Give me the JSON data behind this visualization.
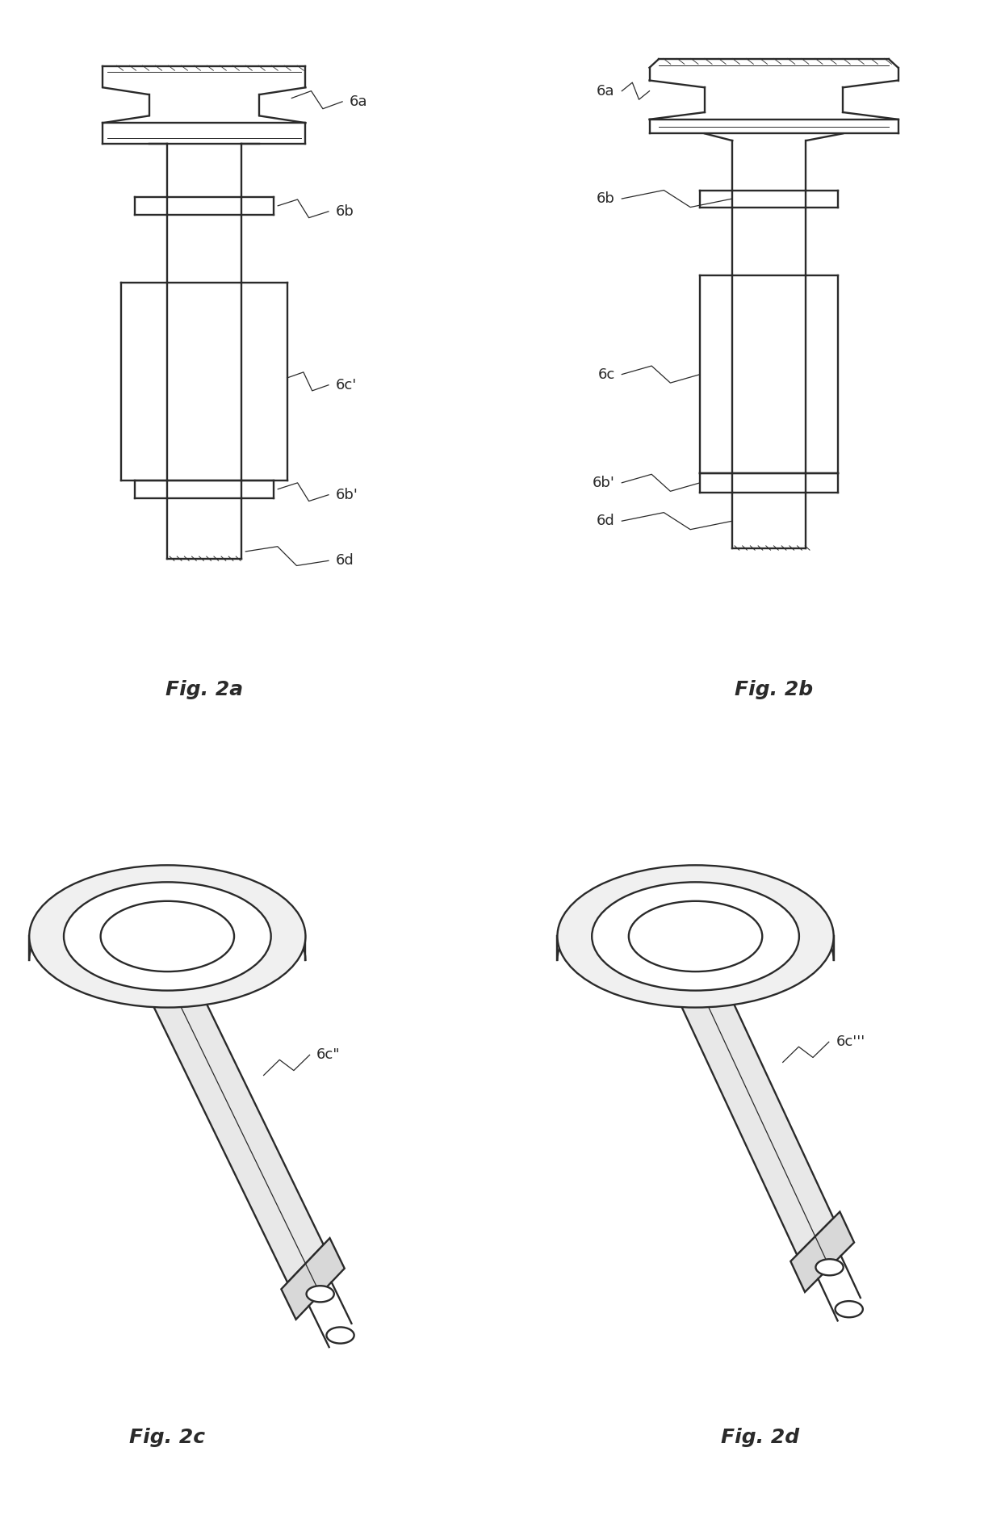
{
  "bg_color": "#ffffff",
  "line_color": "#2a2a2a",
  "fig2a_label": "Fig. 2a",
  "fig2b_label": "Fig. 2b",
  "fig2c_label": "Fig. 2c",
  "fig2d_label": "Fig. 2d",
  "label_fontsize": 18,
  "ref_fontsize": 13
}
